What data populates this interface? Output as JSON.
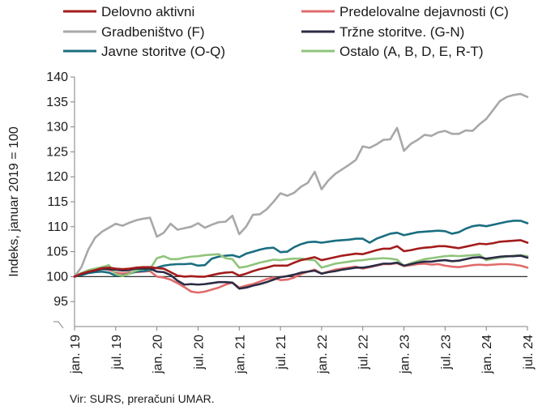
{
  "chart_data": {
    "type": "line",
    "ylabel": "Indeks, januar 2019 = 100",
    "ylim": [
      90,
      140
    ],
    "yticks": [
      95,
      100,
      105,
      110,
      115,
      120,
      125,
      130,
      135,
      140
    ],
    "baseline": 100,
    "grid": false,
    "legend_position": "top",
    "x_tick_labels": [
      "jan. 19",
      "jul. 19",
      "jan. 20",
      "jul. 20",
      "jan. 21",
      "jul. 21",
      "jan. 22",
      "jul. 22",
      "jan. 23",
      "jul. 23",
      "jan. 24",
      "jul. 24"
    ],
    "x_tick_months": [
      0,
      6,
      12,
      18,
      24,
      30,
      36,
      42,
      48,
      54,
      60,
      66
    ],
    "source": "Vir: SURS, preračuni UMAR.",
    "series": [
      {
        "name": "Delovno aktivni",
        "color": "#a31c1c",
        "values": [
          100.0,
          100.6,
          101.0,
          101.3,
          101.7,
          101.8,
          101.6,
          101.5,
          101.6,
          101.8,
          101.9,
          101.9,
          101.7,
          101.6,
          100.9,
          100.2,
          100.0,
          100.1,
          100.0,
          100.0,
          100.3,
          100.6,
          100.8,
          100.9,
          100.2,
          100.6,
          101.1,
          101.5,
          101.8,
          102.2,
          102.2,
          102.2,
          102.8,
          103.3,
          103.6,
          103.9,
          103.3,
          103.6,
          103.9,
          104.2,
          104.4,
          104.6,
          104.5,
          104.9,
          105.3,
          105.6,
          105.6,
          106.1,
          105.1,
          105.3,
          105.6,
          105.8,
          105.9,
          106.1,
          106.1,
          105.9,
          105.7,
          106.0,
          106.3,
          106.6,
          106.5,
          106.7,
          107.0,
          107.1,
          107.2,
          107.3,
          106.8
        ]
      },
      {
        "name": "Predelovalne dejavnosti (C)",
        "color": "#e06b6b",
        "values": [
          100.0,
          100.4,
          100.8,
          101.2,
          101.6,
          101.4,
          100.8,
          100.6,
          100.8,
          100.9,
          101.0,
          101.1,
          100.0,
          99.8,
          99.4,
          98.7,
          97.9,
          97.0,
          96.8,
          97.0,
          97.4,
          97.8,
          98.4,
          98.8,
          97.8,
          98.2,
          98.5,
          99.0,
          99.5,
          99.8,
          99.3,
          99.4,
          99.8,
          100.5,
          101.0,
          101.4,
          100.6,
          101.0,
          101.4,
          101.6,
          101.8,
          102.0,
          101.6,
          101.9,
          102.2,
          102.5,
          102.5,
          102.7,
          102.1,
          102.3,
          102.5,
          102.6,
          102.4,
          102.5,
          102.2,
          102.0,
          101.9,
          102.1,
          102.3,
          102.4,
          102.3,
          102.4,
          102.5,
          102.5,
          102.4,
          102.2,
          101.8
        ]
      },
      {
        "name": "Gradbeništvo (F)",
        "color": "#a8a8a8",
        "values": [
          100.0,
          101.9,
          105.4,
          107.8,
          109.0,
          109.8,
          110.6,
          110.2,
          110.8,
          111.3,
          111.6,
          111.8,
          108.0,
          108.8,
          110.6,
          109.4,
          109.7,
          110.0,
          110.7,
          109.8,
          110.4,
          110.9,
          111.0,
          112.2,
          108.5,
          110.0,
          112.4,
          112.5,
          113.5,
          115.0,
          116.7,
          116.2,
          116.8,
          118.0,
          118.8,
          121.0,
          117.5,
          119.3,
          120.6,
          121.5,
          122.4,
          123.4,
          126.1,
          125.8,
          126.5,
          127.4,
          127.5,
          129.8,
          125.2,
          126.6,
          127.4,
          128.4,
          128.2,
          128.9,
          129.2,
          128.6,
          128.6,
          129.3,
          129.2,
          130.5,
          131.6,
          133.4,
          135.2,
          136.0,
          136.4,
          136.6,
          136.0
        ]
      },
      {
        "name": "Tržne storitve. (G-N)",
        "color": "#2c2c44",
        "values": [
          100.0,
          100.5,
          100.9,
          101.2,
          101.5,
          101.5,
          101.4,
          101.2,
          101.3,
          101.6,
          101.6,
          101.6,
          101.0,
          100.9,
          100.3,
          99.2,
          98.4,
          98.5,
          98.4,
          98.5,
          98.7,
          98.9,
          98.9,
          98.8,
          97.6,
          97.8,
          98.2,
          98.5,
          98.9,
          99.4,
          99.9,
          100.1,
          100.4,
          100.8,
          101.0,
          101.2,
          100.6,
          100.9,
          101.1,
          101.4,
          101.6,
          101.8,
          101.8,
          102.0,
          102.3,
          102.6,
          102.6,
          102.8,
          102.2,
          102.5,
          102.8,
          103.0,
          103.0,
          103.2,
          103.3,
          103.1,
          103.2,
          103.5,
          103.8,
          103.9,
          103.6,
          103.8,
          104.0,
          104.1,
          104.1,
          104.2,
          103.8
        ]
      },
      {
        "name": "Javne storitve (O-Q)",
        "color": "#1a6e80",
        "values": [
          100.0,
          100.3,
          100.7,
          100.9,
          101.0,
          100.8,
          100.2,
          100.2,
          100.6,
          101.0,
          101.1,
          101.3,
          101.8,
          102.2,
          102.4,
          102.5,
          102.5,
          102.6,
          102.2,
          102.3,
          103.6,
          104.0,
          104.2,
          104.3,
          103.9,
          104.6,
          105.0,
          105.4,
          105.7,
          105.8,
          104.9,
          105.0,
          105.9,
          106.5,
          106.9,
          107.0,
          106.8,
          107.0,
          107.2,
          107.3,
          107.4,
          107.6,
          107.6,
          106.8,
          107.6,
          108.1,
          108.6,
          108.8,
          108.3,
          108.6,
          108.9,
          109.0,
          109.1,
          109.2,
          109.1,
          108.6,
          108.9,
          109.6,
          110.1,
          110.3,
          110.1,
          110.4,
          110.7,
          111.0,
          111.2,
          111.2,
          110.7
        ]
      },
      {
        "name": "Ostalo (A, B, D, E, R-T)",
        "color": "#8fc47a",
        "values": [
          100.0,
          100.7,
          101.3,
          101.6,
          101.9,
          102.3,
          100.5,
          100.1,
          100.6,
          101.2,
          101.6,
          101.5,
          103.7,
          104.1,
          103.5,
          103.5,
          103.8,
          104.0,
          104.1,
          104.3,
          104.4,
          104.5,
          103.7,
          103.5,
          101.8,
          102.0,
          102.4,
          102.8,
          103.1,
          103.4,
          103.3,
          103.5,
          103.6,
          103.6,
          103.4,
          103.3,
          101.8,
          102.2,
          102.6,
          102.8,
          103.0,
          103.2,
          103.3,
          103.5,
          103.6,
          103.7,
          103.6,
          103.4,
          102.1,
          102.7,
          103.1,
          103.5,
          103.7,
          103.9,
          104.1,
          104.2,
          104.1,
          104.2,
          104.3,
          104.4,
          103.3,
          103.6,
          103.8,
          104.0,
          104.2,
          104.3,
          104.1
        ]
      }
    ]
  }
}
